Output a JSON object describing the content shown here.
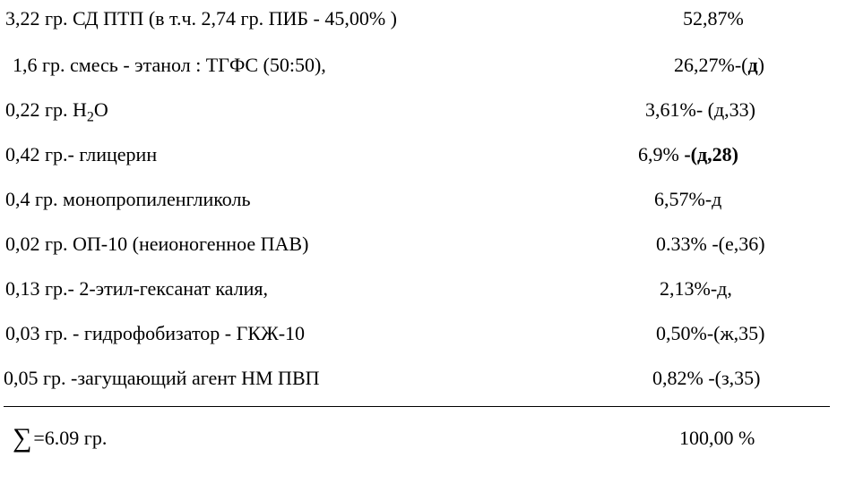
{
  "rows": [
    {
      "left": "3,22 гр. СД ПТП  (в т.ч. 2,74 гр. ПИБ - 45,00% )",
      "right": "52,87%"
    },
    {
      "left": "1,6  гр. смесь  - этанол  : ТГФС (50:50),",
      "right_prefix": "26,27%-(",
      "right_bold": "д",
      "right_suffix": ")"
    },
    {
      "left_html": true,
      "left_pre": "0,22 гр. Н",
      "left_sub": "2",
      "left_post": "О",
      "right": "3,61%- (д,33)"
    },
    {
      "left": "0,42 гр.- глицерин",
      "right_prefix": "6,9% ",
      "right_bold": "-(д,28)",
      "right_suffix": ""
    },
    {
      "left": "0,4 гр. монопропиленгликоль",
      "right": "6,57%-д"
    },
    {
      "left": "0,02 гр. ОП-10 (неионогенное ПАВ)",
      "right": "0.33% -(е,36)"
    },
    {
      "left": "0,13 гр.- 2-этил-гексанат калия,",
      "right": "2,13%-д,"
    },
    {
      "left": "0,03 гр. - гидрофобизатор - ГКЖ-10",
      "right": "0,50%-(ж,35)"
    },
    {
      "left": "0,05 гр. -загущающий агент НМ ПВП",
      "right": "0,82% -(з,35)"
    }
  ],
  "sum": {
    "left": "=6.09 гр.",
    "right": "100,00 %"
  }
}
